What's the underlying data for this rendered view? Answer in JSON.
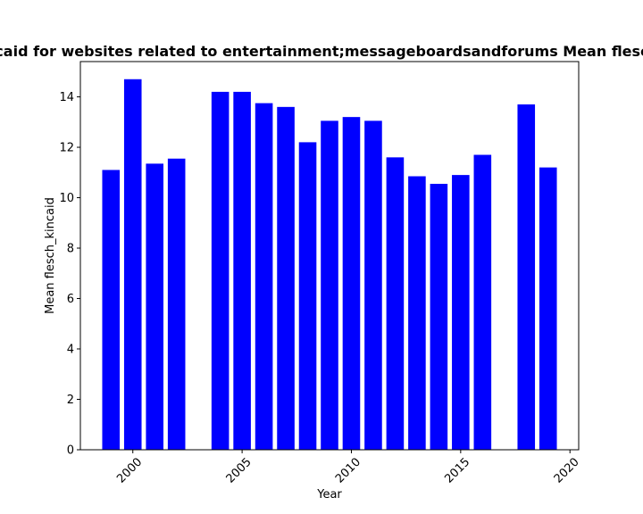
{
  "chart_data": {
    "type": "bar",
    "title": "Mean flesch_kincaid for websites related to entertainment;messageboardsandforums Mean flesch_kincaid in pre",
    "xlabel": "Year",
    "ylabel": "Mean flesch_kincaid",
    "x": [
      1999,
      2000,
      2001,
      2002,
      2004,
      2005,
      2006,
      2007,
      2008,
      2009,
      2010,
      2011,
      2012,
      2013,
      2014,
      2015,
      2016,
      2018,
      2019
    ],
    "values": [
      11.1,
      14.7,
      11.35,
      11.55,
      14.2,
      14.2,
      13.75,
      13.6,
      12.2,
      13.05,
      13.2,
      13.05,
      11.6,
      10.85,
      10.55,
      10.9,
      11.7,
      13.7,
      11.2
    ],
    "xlim": [
      1997.6,
      2020.4
    ],
    "ylim": [
      0,
      15.4
    ],
    "xticks": [
      2000,
      2005,
      2010,
      2015,
      2020
    ],
    "yticks": [
      0,
      2,
      4,
      6,
      8,
      10,
      12,
      14
    ],
    "bar_color": "#0000ff",
    "grid": false
  }
}
